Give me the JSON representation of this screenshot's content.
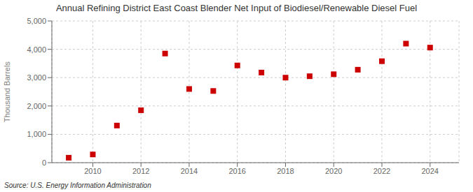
{
  "chart_data": {
    "type": "scatter",
    "title": "Annual Refining District East Coast Blender Net Input of Biodiesel/Renewable Diesel Fuel",
    "ylabel": "Thousand Barrels",
    "annotations": [
      "Source: U.S. Energy Information Administration"
    ],
    "x": [
      2009,
      2010,
      2011,
      2012,
      2013,
      2014,
      2015,
      2016,
      2017,
      2018,
      2019,
      2020,
      2021,
      2022,
      2023,
      2024
    ],
    "values": [
      175,
      290,
      1310,
      1850,
      3850,
      2600,
      2530,
      3430,
      3180,
      3000,
      3050,
      3120,
      3280,
      3580,
      4200,
      4060
    ],
    "color": "#cc0000",
    "marker": "square",
    "xlim": [
      2008.3,
      2025.2
    ],
    "xticks": [
      2010,
      2012,
      2014,
      2016,
      2018,
      2020,
      2022,
      2024
    ],
    "ylim": [
      0,
      5000
    ],
    "yticks": [
      0,
      {
        "value": 1000,
        "label": "1,000"
      },
      {
        "value": 2000,
        "label": "2,000"
      },
      {
        "value": 3000,
        "label": "3,000"
      },
      {
        "value": 4000,
        "label": "4,000"
      },
      {
        "value": 5000,
        "label": "5,000"
      }
    ],
    "grid": true
  }
}
